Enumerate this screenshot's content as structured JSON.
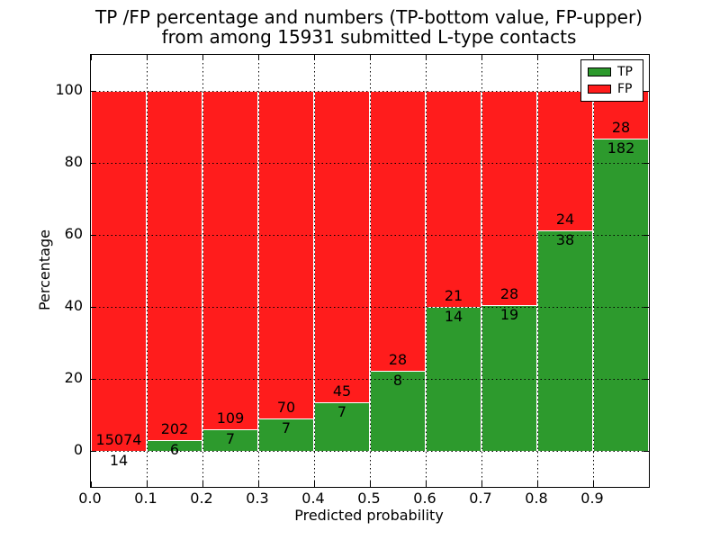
{
  "figure": {
    "title_line1": "TP /FP percentage and numbers (TP-bottom value, FP-upper)",
    "title_line2": "from among 15931 submitted L-type contacts",
    "xlabel": "Predicted probability",
    "ylabel": "Percentage"
  },
  "legend": {
    "items": [
      {
        "label": "TP",
        "color": "#2d9a2d"
      },
      {
        "label": "FP",
        "color": "#ff1c1c"
      }
    ]
  },
  "chart_data": {
    "type": "bar",
    "variant": "stacked-percentage",
    "title": "TP /FP percentage and numbers (TP-bottom value, FP-upper) from among 15931 submitted L-type contacts",
    "xlabel": "Predicted probability",
    "ylabel": "Percentage",
    "total_contacts": 15931,
    "bins": [
      "0.0-0.1",
      "0.1-0.2",
      "0.2-0.3",
      "0.3-0.4",
      "0.4-0.5",
      "0.5-0.6",
      "0.6-0.7",
      "0.7-0.8",
      "0.8-0.9",
      "0.9-1.0"
    ],
    "x_tick_labels": [
      "0.0",
      "0.1",
      "0.2",
      "0.3",
      "0.4",
      "0.5",
      "0.6",
      "0.7",
      "0.8",
      "0.9"
    ],
    "y_ticks": [
      0,
      20,
      40,
      60,
      80,
      100
    ],
    "xlim": [
      0.0,
      1.0
    ],
    "ylim": [
      -10,
      110
    ],
    "grid": true,
    "legend_position": "upper-right",
    "series": [
      {
        "name": "TP",
        "color": "#2d9a2d",
        "counts": [
          14,
          6,
          7,
          7,
          7,
          8,
          14,
          19,
          38,
          182
        ],
        "percent": [
          0.09,
          2.88,
          6.03,
          9.09,
          13.46,
          22.22,
          40.0,
          40.43,
          61.29,
          86.67
        ]
      },
      {
        "name": "FP",
        "color": "#ff1c1c",
        "counts": [
          15074,
          202,
          109,
          70,
          45,
          28,
          21,
          28,
          24,
          28
        ],
        "percent": [
          99.91,
          97.12,
          93.97,
          90.91,
          86.54,
          77.78,
          60.0,
          59.57,
          38.71,
          13.33
        ]
      }
    ]
  }
}
